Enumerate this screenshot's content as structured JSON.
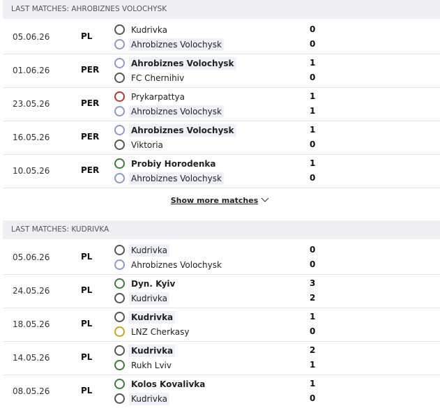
{
  "sections": [
    {
      "title": "LAST MATCHES: AHROBIZNES VOLOCHYSK",
      "matches": [
        {
          "date": "05.06.26",
          "competition": "PL",
          "home": "Kudrivka",
          "away": "Ahrobiznes Volochysk",
          "home_score": 0,
          "away_score": 0
        },
        {
          "date": "01.06.26",
          "competition": "PER",
          "home": "Ahrobiznes Volochysk",
          "away": "FC Chernihiv",
          "home_score": 1,
          "away_score": 0
        },
        {
          "date": "23.05.26",
          "competition": "PER",
          "home": "Prykarpattya",
          "away": "Ahrobiznes Volochysk",
          "home_score": 1,
          "away_score": 1
        },
        {
          "date": "16.05.26",
          "competition": "PER",
          "home": "Ahrobiznes Volochysk",
          "away": "Viktoria",
          "home_score": 1,
          "away_score": 0
        },
        {
          "date": "10.05.26",
          "competition": "PER",
          "home": "Probiy Horodenka",
          "away": "Ahrobiznes Volochysk",
          "home_score": 1,
          "away_score": 0
        }
      ],
      "show_more": "Show more matches"
    },
    {
      "title": "LAST MATCHES: KUDRIVKA",
      "matches": [
        {
          "date": "05.06.26",
          "competition": "PL",
          "home": "Kudrivka",
          "away": "Ahrobiznes Volochysk",
          "home_score": 0,
          "away_score": 0
        },
        {
          "date": "24.05.26",
          "competition": "PL",
          "home": "Dyn. Kyiv",
          "away": "Kudrivka",
          "home_score": 3,
          "away_score": 2
        },
        {
          "date": "18.05.26",
          "competition": "PL",
          "home": "Kudrivka",
          "away": "LNZ Cherkasy",
          "home_score": 1,
          "away_score": 0
        },
        {
          "date": "14.05.26",
          "competition": "PL",
          "home": "Kudrivka",
          "away": "Rukh Lviv",
          "home_score": 2,
          "away_score": 1
        },
        {
          "date": "08.05.26",
          "competition": "PL",
          "home": "Kolos Kovalivka",
          "away": "Kudrivka",
          "home_score": 1,
          "away_score": 0
        }
      ]
    }
  ]
}
